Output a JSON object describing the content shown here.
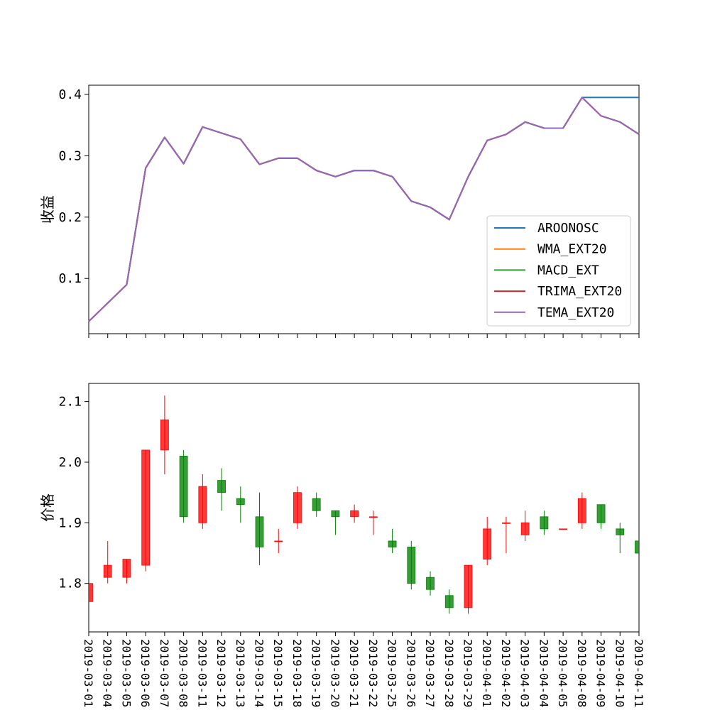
{
  "chart_data": [
    {
      "type": "line",
      "ylabel": "收益",
      "xlabel": "",
      "ylim": [
        0.01,
        0.415
      ],
      "yticks": [
        "0.1",
        "0.2",
        "0.3",
        "0.4"
      ],
      "legend_position": "lower-right",
      "x": [
        "2019-03-01",
        "2019-03-04",
        "2019-03-05",
        "2019-03-06",
        "2019-03-07",
        "2019-03-08",
        "2019-03-11",
        "2019-03-12",
        "2019-03-13",
        "2019-03-14",
        "2019-03-15",
        "2019-03-18",
        "2019-03-19",
        "2019-03-20",
        "2019-03-21",
        "2019-03-22",
        "2019-03-25",
        "2019-03-26",
        "2019-03-27",
        "2019-03-28",
        "2019-03-29",
        "2019-04-01",
        "2019-04-02",
        "2019-04-03",
        "2019-04-04",
        "2019-04-05",
        "2019-04-08",
        "2019-04-09",
        "2019-04-10",
        "2019-04-11"
      ],
      "series": [
        {
          "name": "AROONOSC",
          "color": "#1f77b4",
          "values": [
            0.03,
            0.06,
            0.09,
            0.28,
            0.33,
            0.287,
            0.347,
            0.337,
            0.327,
            0.286,
            0.296,
            0.296,
            0.276,
            0.266,
            0.276,
            0.276,
            0.266,
            0.226,
            0.216,
            0.196,
            0.266,
            0.325,
            0.335,
            0.355,
            0.345,
            0.345,
            0.395,
            0.395,
            0.395,
            0.395
          ]
        },
        {
          "name": "WMA_EXT20",
          "color": "#ff7f0e",
          "values": [
            0.03,
            0.06,
            0.09,
            0.28,
            0.33,
            0.287,
            0.347,
            0.337,
            0.327,
            0.286,
            0.296,
            0.296,
            0.276,
            0.266,
            0.276,
            0.276,
            0.266,
            0.226,
            0.216,
            0.196,
            0.266,
            0.325,
            0.335,
            0.355,
            0.345,
            0.345,
            0.395,
            0.365,
            0.355,
            0.335
          ]
        },
        {
          "name": "MACD_EXT",
          "color": "#2ca02c",
          "values": [
            0.03,
            0.06,
            0.09,
            0.28,
            0.33,
            0.287,
            0.347,
            0.337,
            0.327,
            0.286,
            0.296,
            0.296,
            0.276,
            0.266,
            0.276,
            0.276,
            0.266,
            0.226,
            0.216,
            0.196,
            0.266,
            0.325,
            0.335,
            0.355,
            0.345,
            0.345,
            0.395,
            0.365,
            0.355,
            0.335
          ]
        },
        {
          "name": "TRIMA_EXT20",
          "color": "#d62728",
          "values": [
            0.03,
            0.06,
            0.09,
            0.28,
            0.33,
            0.287,
            0.347,
            0.337,
            0.327,
            0.286,
            0.296,
            0.296,
            0.276,
            0.266,
            0.276,
            0.276,
            0.266,
            0.226,
            0.216,
            0.196,
            0.266,
            0.325,
            0.335,
            0.355,
            0.345,
            0.345,
            0.395,
            0.365,
            0.355,
            0.335
          ]
        },
        {
          "name": "TEMA_EXT20",
          "color": "#9467bd",
          "values": [
            0.03,
            0.06,
            0.09,
            0.28,
            0.33,
            0.287,
            0.347,
            0.337,
            0.327,
            0.286,
            0.296,
            0.296,
            0.276,
            0.266,
            0.276,
            0.276,
            0.266,
            0.226,
            0.216,
            0.196,
            0.266,
            0.325,
            0.335,
            0.355,
            0.345,
            0.345,
            0.395,
            0.365,
            0.355,
            0.335
          ]
        }
      ]
    },
    {
      "type": "candlestick",
      "ylabel": "价格",
      "xlabel": "",
      "ylim": [
        1.72,
        2.13
      ],
      "yticks": [
        "1.8",
        "1.9",
        "2.0",
        "2.1"
      ],
      "up_color": "#ff0000",
      "down_color": "#008000",
      "categories": [
        "2019-03-01",
        "2019-03-04",
        "2019-03-05",
        "2019-03-06",
        "2019-03-07",
        "2019-03-08",
        "2019-03-11",
        "2019-03-12",
        "2019-03-13",
        "2019-03-14",
        "2019-03-15",
        "2019-03-18",
        "2019-03-19",
        "2019-03-20",
        "2019-03-21",
        "2019-03-22",
        "2019-03-25",
        "2019-03-26",
        "2019-03-27",
        "2019-03-28",
        "2019-03-29",
        "2019-04-01",
        "2019-04-02",
        "2019-04-03",
        "2019-04-04",
        "2019-04-05",
        "2019-04-08",
        "2019-04-09",
        "2019-04-10",
        "2019-04-11"
      ],
      "candles": [
        {
          "open": 1.77,
          "close": 1.8,
          "high": 1.8,
          "low": 1.77
        },
        {
          "open": 1.81,
          "close": 1.83,
          "high": 1.87,
          "low": 1.8
        },
        {
          "open": 1.81,
          "close": 1.84,
          "high": 1.84,
          "low": 1.8
        },
        {
          "open": 1.83,
          "close": 2.02,
          "high": 2.02,
          "low": 1.82
        },
        {
          "open": 2.02,
          "close": 2.07,
          "high": 2.11,
          "low": 1.98
        },
        {
          "open": 2.01,
          "close": 1.91,
          "high": 2.02,
          "low": 1.9
        },
        {
          "open": 1.9,
          "close": 1.96,
          "high": 1.98,
          "low": 1.89
        },
        {
          "open": 1.97,
          "close": 1.95,
          "high": 1.99,
          "low": 1.92
        },
        {
          "open": 1.94,
          "close": 1.93,
          "high": 1.96,
          "low": 1.9
        },
        {
          "open": 1.91,
          "close": 1.86,
          "high": 1.95,
          "low": 1.83
        },
        {
          "open": 1.87,
          "close": 1.87,
          "high": 1.89,
          "low": 1.85
        },
        {
          "open": 1.9,
          "close": 1.95,
          "high": 1.96,
          "low": 1.89
        },
        {
          "open": 1.94,
          "close": 1.92,
          "high": 1.95,
          "low": 1.91
        },
        {
          "open": 1.92,
          "close": 1.91,
          "high": 1.92,
          "low": 1.88
        },
        {
          "open": 1.91,
          "close": 1.92,
          "high": 1.93,
          "low": 1.9
        },
        {
          "open": 1.91,
          "close": 1.91,
          "high": 1.92,
          "low": 1.88
        },
        {
          "open": 1.87,
          "close": 1.86,
          "high": 1.89,
          "low": 1.85
        },
        {
          "open": 1.86,
          "close": 1.8,
          "high": 1.87,
          "low": 1.79
        },
        {
          "open": 1.81,
          "close": 1.79,
          "high": 1.82,
          "low": 1.78
        },
        {
          "open": 1.78,
          "close": 1.76,
          "high": 1.79,
          "low": 1.75
        },
        {
          "open": 1.76,
          "close": 1.83,
          "high": 1.83,
          "low": 1.75
        },
        {
          "open": 1.84,
          "close": 1.89,
          "high": 1.91,
          "low": 1.83
        },
        {
          "open": 1.9,
          "close": 1.9,
          "high": 1.91,
          "low": 1.85
        },
        {
          "open": 1.88,
          "close": 1.9,
          "high": 1.92,
          "low": 1.87
        },
        {
          "open": 1.91,
          "close": 1.89,
          "high": 1.92,
          "low": 1.88
        },
        {
          "open": 1.89,
          "close": 1.89,
          "high": 1.89,
          "low": 1.89
        },
        {
          "open": 1.9,
          "close": 1.94,
          "high": 1.95,
          "low": 1.89
        },
        {
          "open": 1.93,
          "close": 1.9,
          "high": 1.93,
          "low": 1.89
        },
        {
          "open": 1.89,
          "close": 1.88,
          "high": 1.9,
          "low": 1.85
        },
        {
          "open": 1.87,
          "close": 1.85,
          "high": 1.87,
          "low": 1.85
        }
      ]
    }
  ]
}
